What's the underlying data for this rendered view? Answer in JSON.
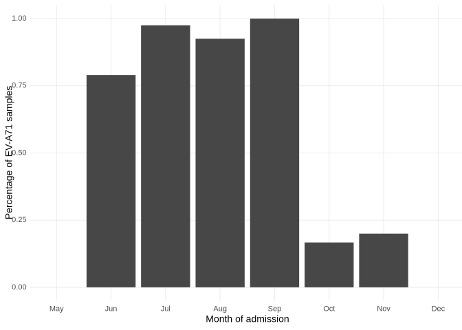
{
  "chart_data": {
    "type": "bar",
    "x_label": "Month of admission",
    "y_label": "Percentage of EV-A71 samples",
    "categories": [
      "May",
      "Jun",
      "Jul",
      "Aug",
      "Sep",
      "Oct",
      "Nov",
      "Dec"
    ],
    "values": [
      0,
      0.79,
      0.975,
      0.925,
      1.0,
      0.167,
      0.2,
      0
    ],
    "color": "#474747",
    "ylim": [
      -0.05,
      1.05
    ],
    "yticks": [
      {
        "value": 0,
        "label": "0.00"
      },
      {
        "value": 0.25,
        "label": "0.25"
      },
      {
        "value": 0.5,
        "label": "0.50"
      },
      {
        "value": 0.75,
        "label": "0.75"
      },
      {
        "value": 1,
        "label": "1.00"
      }
    ],
    "grid": true
  }
}
